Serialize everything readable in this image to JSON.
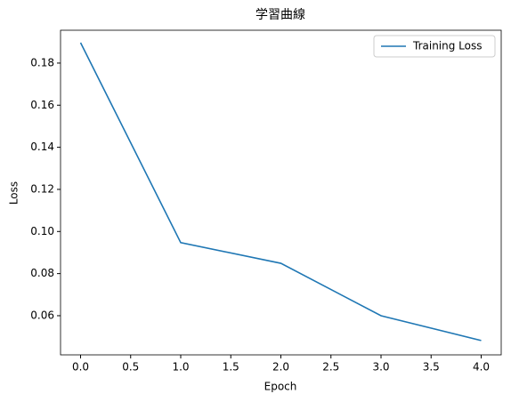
{
  "chart_data": {
    "type": "line",
    "title": "学習曲線",
    "xlabel": "Epoch",
    "ylabel": "Loss",
    "x": [
      0,
      1,
      2,
      3,
      4
    ],
    "series": [
      {
        "name": "Training Loss",
        "color": "#1f77b4",
        "values": [
          0.1897,
          0.0947,
          0.0849,
          0.06,
          0.0482
        ]
      }
    ],
    "xlim": [
      -0.2,
      4.2
    ],
    "xticks": [
      {
        "value": 0,
        "label": "0.0"
      },
      0.5,
      {
        "value": 1,
        "label": "1.0"
      },
      1.5,
      {
        "value": 2,
        "label": "2.0"
      },
      2.5,
      {
        "value": 3,
        "label": "3.0"
      },
      3.5,
      {
        "value": 4,
        "label": "4.0"
      }
    ],
    "ylim": [
      0.0414,
      0.1956
    ],
    "yticks": [
      0.06,
      0.08,
      {
        "value": 0.1,
        "label": "0.10"
      },
      0.12,
      0.14,
      0.16,
      0.18
    ],
    "grid": false,
    "legend": "upper right"
  }
}
